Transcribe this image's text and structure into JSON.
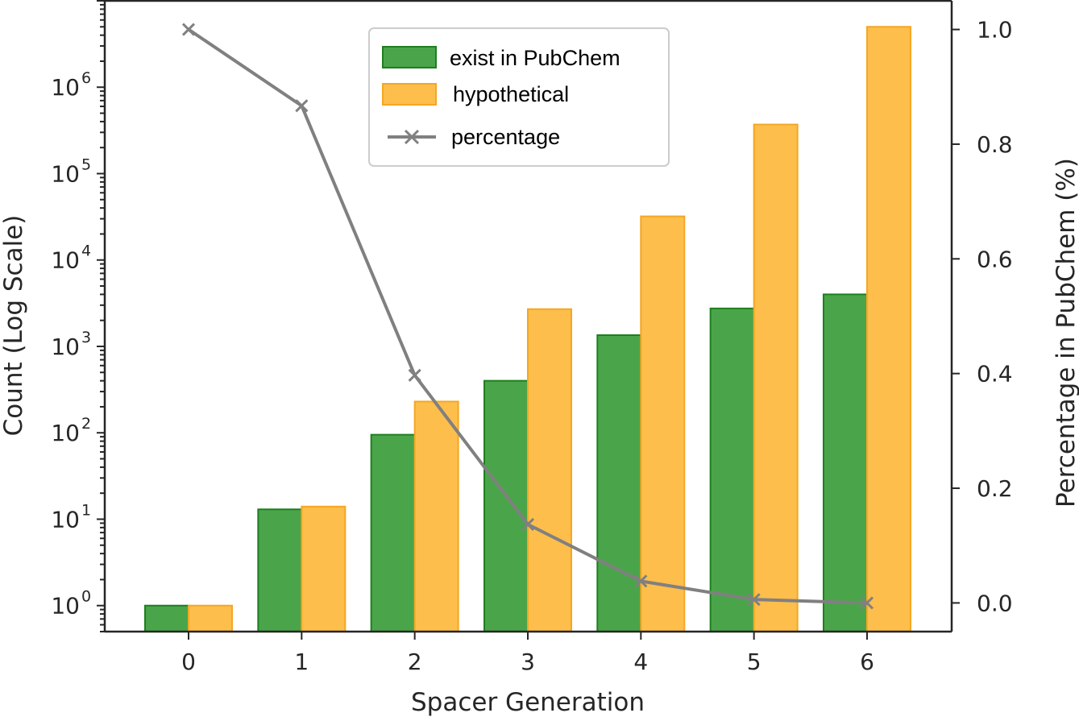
{
  "chart_data": {
    "type": "bar",
    "title": "",
    "xlabel": "Spacer Generation",
    "ylabel": "Count (Log Scale)",
    "y2label": "Percentage in PubChem (%)",
    "categories": [
      "0",
      "1",
      "2",
      "3",
      "4",
      "5",
      "6"
    ],
    "yscale": "log",
    "ylim": [
      0.5,
      10000000
    ],
    "y_ticks": [
      {
        "base": "10",
        "exp": "0"
      },
      {
        "base": "10",
        "exp": "1"
      },
      {
        "base": "10",
        "exp": "2"
      },
      {
        "base": "10",
        "exp": "3"
      },
      {
        "base": "10",
        "exp": "4"
      },
      {
        "base": "10",
        "exp": "5"
      },
      {
        "base": "10",
        "exp": "6"
      }
    ],
    "y2lim": [
      -0.05,
      1.05
    ],
    "y2_ticks": [
      "0.0",
      "0.2",
      "0.4",
      "0.6",
      "0.8",
      "1.0"
    ],
    "series": [
      {
        "name": "exist in PubChem",
        "kind": "bar",
        "color": "#4aa54a",
        "edge": "#1e7f1e",
        "values": [
          1,
          13,
          95,
          400,
          1350,
          2750,
          4000
        ]
      },
      {
        "name": "hypothetical",
        "kind": "bar",
        "color": "#fdbe4c",
        "edge": "#f5a623",
        "values": [
          1,
          14,
          230,
          2700,
          32000,
          370000,
          5000000
        ]
      },
      {
        "name": "percentage",
        "kind": "line",
        "axis": "right",
        "color": "#808080",
        "marker": "x",
        "values": [
          1.0,
          0.867,
          0.397,
          0.137,
          0.038,
          0.006,
          0.0
        ]
      }
    ],
    "grid": false,
    "legend": "top-center"
  }
}
